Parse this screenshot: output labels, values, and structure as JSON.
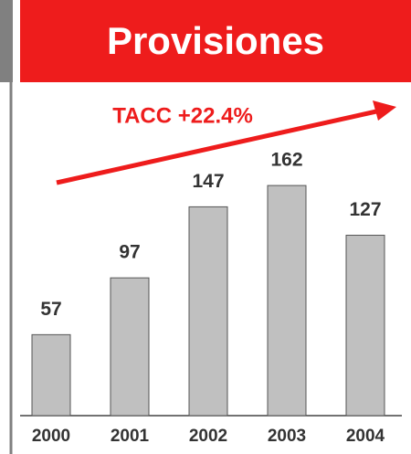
{
  "chart_data": {
    "type": "bar",
    "title": "Provisiones",
    "annotation": "TACC +22.4%",
    "categories": [
      "2000",
      "2001",
      "2002",
      "2003",
      "2004"
    ],
    "values": [
      57,
      97,
      147,
      162,
      127
    ],
    "color": "#c0c0c0",
    "ylim": [
      0,
      200
    ]
  }
}
